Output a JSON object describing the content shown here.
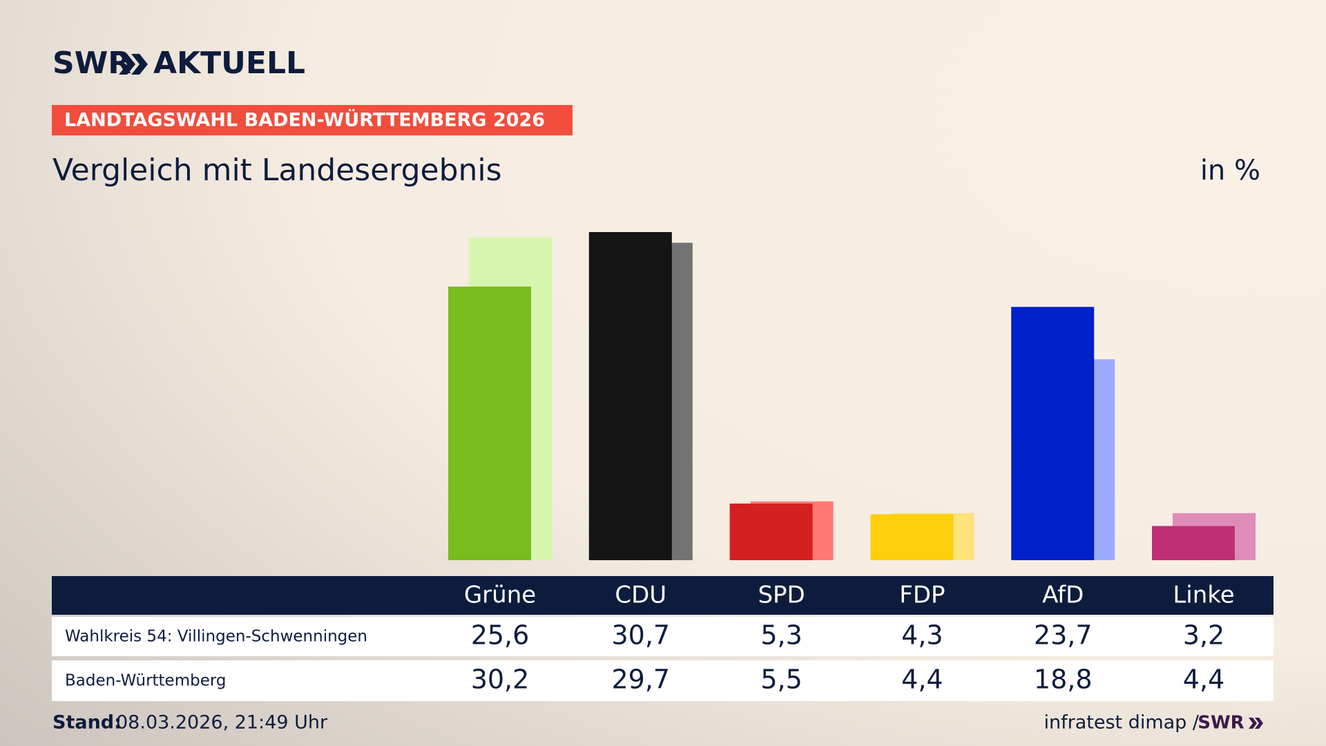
{
  "header": {
    "brand": "SWR",
    "product": "AKTUELL",
    "banner": "LANDTAGSWAHL BADEN-WÜRTTEMBERG 2026"
  },
  "chart_data": {
    "type": "bar",
    "title": "Vergleich mit Landesergebnis",
    "unit": "in %",
    "categories": [
      "Grüne",
      "CDU",
      "SPD",
      "FDP",
      "AfD",
      "Linke"
    ],
    "series": [
      {
        "name": "Wahlkreis 54: Villingen-Schwenningen",
        "colors": [
          "#78bc1e",
          "#141414",
          "#d42020",
          "#fdcf0c",
          "#0021c9",
          "#bd3075"
        ],
        "values": [
          25.6,
          30.7,
          5.3,
          4.3,
          23.7,
          3.2
        ],
        "value_labels": [
          "25,6",
          "30,7",
          "5,3",
          "4,3",
          "23,7",
          "3,2"
        ]
      },
      {
        "name": "Baden-Württemberg",
        "colors": [
          "#d6f5ae",
          "#737373",
          "#ff7b73",
          "#fee27a",
          "#9cabff",
          "#e08cb9"
        ],
        "values": [
          30.2,
          29.7,
          5.5,
          4.4,
          18.8,
          4.4
        ],
        "value_labels": [
          "30,2",
          "29,7",
          "5,5",
          "4,4",
          "18,8",
          "4,4"
        ]
      }
    ]
  },
  "footer": {
    "stand_label": "Stand:",
    "stand": "08.03.2026, 21:49 Uhr",
    "source": "infratest dimap /",
    "logo": "SWR"
  }
}
